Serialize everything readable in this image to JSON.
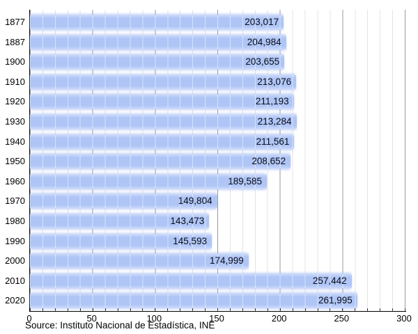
{
  "chart_data": {
    "type": "bar",
    "orientation": "horizontal",
    "title": "",
    "xlabel": "",
    "ylabel": "",
    "categories": [
      "1877",
      "1887",
      "1900",
      "1910",
      "1920",
      "1930",
      "1940",
      "1950",
      "1960",
      "1970",
      "1980",
      "1990",
      "2000",
      "2010",
      "2020"
    ],
    "values": [
      203017,
      204984,
      203655,
      213076,
      211193,
      213284,
      211561,
      208652,
      189585,
      149804,
      143473,
      145593,
      174999,
      257442,
      261995
    ],
    "value_labels": [
      "203,017",
      "204,984",
      "203,655",
      "213,076",
      "211,193",
      "213,284",
      "211,561",
      "208,652",
      "189,585",
      "149,804",
      "143,473",
      "145,593",
      "174,999",
      "257,442",
      "261,995"
    ],
    "x_ticks": [
      0,
      50,
      100,
      150,
      200,
      250,
      300
    ],
    "x_tick_labels": [
      "0",
      "50",
      "100",
      "150",
      "200",
      "250",
      "300"
    ],
    "xlim": [
      0,
      300
    ],
    "axis_unit_scale": 1000,
    "grid": {
      "minor_step": 10,
      "major_step": 50,
      "grid_on": true
    },
    "legend_position": "none",
    "source": "Source: Instituto Nacional de Estadística, INE",
    "colors": {
      "bar": "#aec5f6",
      "bar_edge_glow": "#c9d7fa",
      "minor_grid": "#e4e4e4",
      "major_grid": "#9a9a9a",
      "axis": "#000000",
      "text": "#000000",
      "background": "#ffffff"
    }
  }
}
